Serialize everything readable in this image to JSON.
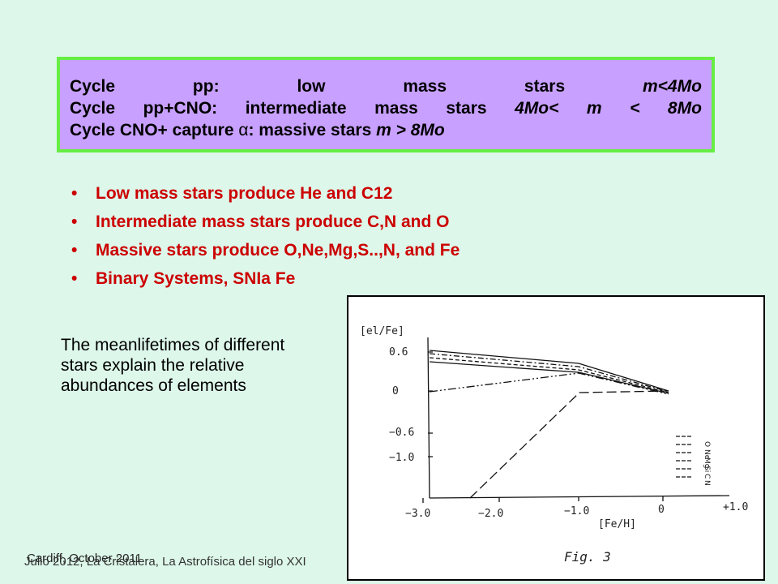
{
  "cycle_box": {
    "line1": [
      "Cycle",
      "pp:",
      "low",
      "mass",
      "stars",
      "m<4Mo"
    ],
    "line2": [
      "Cycle",
      "pp+CNO:",
      "intermediate",
      "mass",
      "stars",
      "4Mo<",
      "m",
      "<",
      "8Mo"
    ],
    "line3_text": "Cycle CNO+ capture ",
    "line3_symbol": "α",
    "line3_rest": ": massive stars ",
    "line3_mass": "m > 8Mo"
  },
  "bullets": [
    "Low mass stars produce He and C12",
    "Intermediate mass stars produce C,N and O",
    "Massive stars produce O,Ne,Mg,S..,N, and Fe",
    "Binary Systems, SNIa Fe"
  ],
  "meanlife_text": "The meanlifetimes of different stars explain the relative abundances of elements",
  "figure": {
    "y_axis_label": "[el/Fe]",
    "x_axis_label": "[Fe/H]",
    "y_ticks": [
      "0.6",
      "0",
      "−0.6",
      "−1.0"
    ],
    "x_ticks": [
      "−3.0",
      "−2.0",
      "−1.0",
      "0",
      "+1.0"
    ],
    "legend": [
      "O",
      "Ne",
      "Mg",
      "Si",
      "C",
      "N"
    ],
    "caption": "Fig. 3"
  },
  "footer": {
    "text_a": "Cardiff, October 2011",
    "text_b": "Julio 2012, La Cristalera, La Astrofísica del siglo XXI"
  },
  "colors": {
    "background": "#ddf7ea",
    "box_fill": "#c8a0ff",
    "box_border": "#66ee44",
    "bullet_text": "#cc0000"
  }
}
